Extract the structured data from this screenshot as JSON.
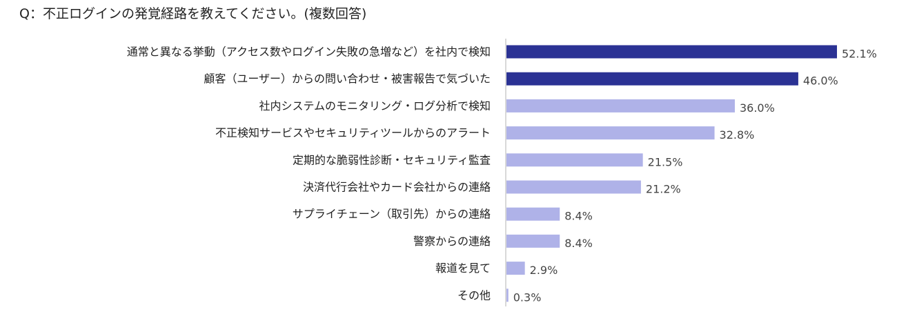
{
  "question": "Q：不正ログインの発覚経路を教えてください。(複数回答)",
  "colors": {
    "highlight": "#2b3294",
    "normal": "#afb2e8",
    "axis": "#cccccc",
    "text": "#222222"
  },
  "chart_data": {
    "type": "bar",
    "orientation": "horizontal",
    "title": "",
    "xlabel": "",
    "ylabel": "",
    "value_suffix": "%",
    "xlim": [
      0,
      55
    ],
    "grid": false,
    "legend": "none",
    "categories": [
      "通常と異なる挙動（アクセス数やログイン失敗の急増など）を社内で検知",
      "顧客（ユーザー）からの問い合わせ・被害報告で気づいた",
      "社内システムのモニタリング・ログ分析で検知",
      "不正検知サービスやセキュリティツールからのアラート",
      "定期的な脆弱性診断・セキュリティ監査",
      "決済代行会社やカード会社からの連絡",
      "サプライチェーン（取引先）からの連絡",
      "警察からの連絡",
      "報道を見て",
      "その他"
    ],
    "values": [
      52.1,
      46.0,
      36.0,
      32.8,
      21.5,
      21.2,
      8.4,
      8.4,
      2.9,
      0.3
    ],
    "value_labels": [
      "52.1%",
      "46.0%",
      "36.0%",
      "32.8%",
      "21.5%",
      "21.2%",
      "8.4%",
      "8.4%",
      "2.9%",
      "0.3%"
    ],
    "highlighted": [
      true,
      true,
      false,
      false,
      false,
      false,
      false,
      false,
      false,
      false
    ]
  }
}
